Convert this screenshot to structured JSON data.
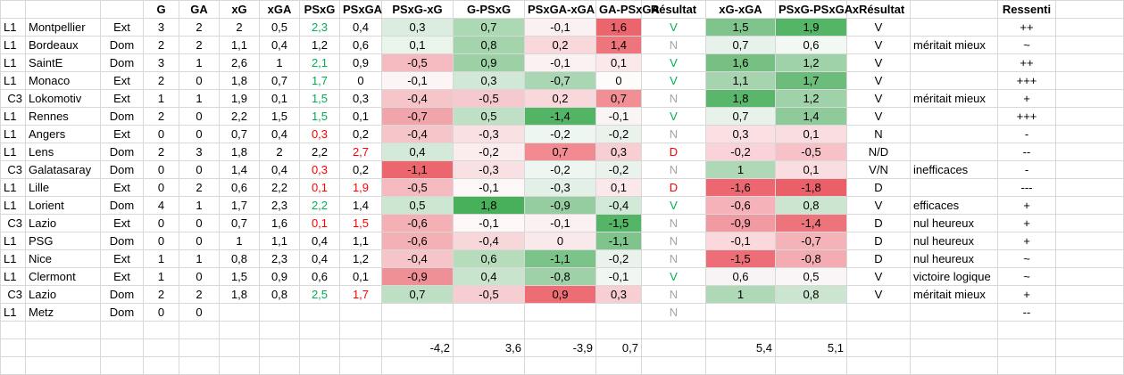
{
  "headers": {
    "league": "",
    "team": "",
    "venue": "",
    "g": "G",
    "ga": "GA",
    "xg": "xG",
    "xga": "xGA",
    "psxg": "PSxG",
    "psxga": "PSxGA",
    "psxg_xg": "PSxG-xG",
    "g_psxg": "G-PSxG",
    "psxga_xga": "PSxGA-xGA",
    "ga_psxga": "GA-PSxGA",
    "resultat": "Résultat",
    "xg_xga": "xG-xGA",
    "psxg_psxga": "PSxG-PSxGA",
    "xresultat": "xRésultat",
    "note": "",
    "ressenti": "Ressenti",
    "blank": ""
  },
  "colors": {
    "text": {
      "green": "#00b050",
      "red": "#ff0000",
      "grey": "#a6a6a6",
      "black": "#000000"
    },
    "gridline": "#d8d8d8"
  },
  "rows": [
    {
      "league": "L1",
      "team": "Montpellier",
      "venue": "Ext",
      "g": "3",
      "ga": "2",
      "xg": "2",
      "xga": "0,5",
      "psxg": {
        "t": "2,3",
        "fg": "green"
      },
      "psxga": {
        "t": "0,4"
      },
      "psxg_xg": {
        "t": "0,3",
        "bg": "#dbedde"
      },
      "g_psxg": {
        "t": "0,7",
        "bg": "#add8b4"
      },
      "psxga_xga": {
        "t": "-0,1",
        "bg": "#fbf1f2"
      },
      "ga_psxga": {
        "t": "1,6",
        "bg": "#ec656c"
      },
      "resultat": {
        "t": "V",
        "fg": "green"
      },
      "xg_xga": {
        "t": "1,5",
        "bg": "#7fc48c"
      },
      "psxg_psxga": {
        "t": "1,9",
        "bg": "#55b567"
      },
      "xresultat": "V",
      "note": "",
      "ressenti": "++"
    },
    {
      "league": "L1",
      "team": "Bordeaux",
      "venue": "Dom",
      "g": "2",
      "ga": "2",
      "xg": "1,1",
      "xga": "0,4",
      "psxg": {
        "t": "1,2"
      },
      "psxga": {
        "t": "0,6"
      },
      "psxg_xg": {
        "t": "0,1",
        "bg": "#e9f4eb"
      },
      "g_psxg": {
        "t": "0,8",
        "bg": "#a4d4ac"
      },
      "psxga_xga": {
        "t": "0,2",
        "bg": "#f8d8db"
      },
      "ga_psxga": {
        "t": "1,4",
        "bg": "#ee757c"
      },
      "resultat": {
        "t": "N",
        "fg": "grey"
      },
      "xg_xga": {
        "t": "0,7",
        "bg": "#e6f2ea"
      },
      "psxg_psxga": {
        "t": "0,6",
        "bg": "#f2f8f4"
      },
      "xresultat": "V",
      "note": "méritait mieux",
      "ressenti": "~"
    },
    {
      "league": "L1",
      "team": "SaintE",
      "venue": "Dom",
      "g": "3",
      "ga": "1",
      "xg": "2,6",
      "xga": "1",
      "psxg": {
        "t": "2,1",
        "fg": "green"
      },
      "psxga": {
        "t": "0,9"
      },
      "psxg_xg": {
        "t": "-0,5",
        "bg": "#f4babf"
      },
      "g_psxg": {
        "t": "0,9",
        "bg": "#9cd0a5"
      },
      "psxga_xga": {
        "t": "-0,1",
        "bg": "#fbf1f2"
      },
      "ga_psxga": {
        "t": "0,1",
        "bg": "#fbe8ea"
      },
      "resultat": {
        "t": "V",
        "fg": "green"
      },
      "xg_xga": {
        "t": "1,6",
        "bg": "#76c083"
      },
      "psxg_psxga": {
        "t": "1,2",
        "bg": "#a0d2a9"
      },
      "xresultat": "V",
      "note": "",
      "ressenti": "++"
    },
    {
      "league": "L1",
      "team": "Monaco",
      "venue": "Ext",
      "g": "2",
      "ga": "0",
      "xg": "1,8",
      "xga": "0,7",
      "psxg": {
        "t": "1,7",
        "fg": "green"
      },
      "psxga": {
        "t": "0"
      },
      "psxg_xg": {
        "t": "-0,1",
        "bg": "#fdf4f5"
      },
      "g_psxg": {
        "t": "0,3",
        "bg": "#d2e8d6"
      },
      "psxga_xga": {
        "t": "-0,7",
        "bg": "#abd6b3"
      },
      "ga_psxga": {
        "t": "0",
        "bg": "#fefbfb"
      },
      "resultat": {
        "t": "V",
        "fg": "green"
      },
      "xg_xga": {
        "t": "1,1",
        "bg": "#a5d4ae"
      },
      "psxg_psxga": {
        "t": "1,7",
        "bg": "#6cbd7b"
      },
      "xresultat": "V",
      "note": "",
      "ressenti": "+++"
    },
    {
      "league": "C3",
      "team": "Lokomotiv",
      "venue": "Ext",
      "g": "1",
      "ga": "1",
      "xg": "1,9",
      "xga": "0,1",
      "psxg": {
        "t": "1,5",
        "fg": "green"
      },
      "psxga": {
        "t": "0,3"
      },
      "psxg_xg": {
        "t": "-0,4",
        "bg": "#f6c5c9"
      },
      "g_psxg": {
        "t": "-0,5",
        "bg": "#f5c9cd"
      },
      "psxga_xga": {
        "t": "0,2",
        "bg": "#f8d8db"
      },
      "ga_psxga": {
        "t": "0,7",
        "bg": "#f28f95"
      },
      "resultat": {
        "t": "N",
        "fg": "grey"
      },
      "xg_xga": {
        "t": "1,8",
        "bg": "#5ab66b"
      },
      "psxg_psxga": {
        "t": "1,2",
        "bg": "#a0d2a9"
      },
      "xresultat": "V",
      "note": "méritait mieux",
      "ressenti": "+"
    },
    {
      "league": "L1",
      "team": "Rennes",
      "venue": "Dom",
      "g": "2",
      "ga": "0",
      "xg": "2,2",
      "xga": "1,5",
      "psxg": {
        "t": "1,5",
        "fg": "green"
      },
      "psxga": {
        "t": "0,1"
      },
      "psxg_xg": {
        "t": "-0,7",
        "bg": "#f1a5ab"
      },
      "g_psxg": {
        "t": "0,5",
        "bg": "#c0e0c5"
      },
      "psxga_xga": {
        "t": "-1,4",
        "bg": "#52b464"
      },
      "ga_psxga": {
        "t": "-0,1",
        "bg": "#faf5f5"
      },
      "resultat": {
        "t": "V",
        "fg": "green"
      },
      "xg_xga": {
        "t": "0,7",
        "bg": "#e6f2ea"
      },
      "psxg_psxga": {
        "t": "1,4",
        "bg": "#8fcb9a"
      },
      "xresultat": "V",
      "note": "",
      "ressenti": "+++"
    },
    {
      "league": "L1",
      "team": "Angers",
      "venue": "Ext",
      "g": "0",
      "ga": "0",
      "xg": "0,7",
      "xga": "0,4",
      "psxg": {
        "t": "0,3",
        "fg": "red"
      },
      "psxga": {
        "t": "0,2"
      },
      "psxg_xg": {
        "t": "-0,4",
        "bg": "#f6c5c9"
      },
      "g_psxg": {
        "t": "-0,3",
        "bg": "#f9e1e3"
      },
      "psxga_xga": {
        "t": "-0,2",
        "bg": "#eef6f1"
      },
      "ga_psxga": {
        "t": "-0,2",
        "bg": "#e9f3ec"
      },
      "resultat": {
        "t": "N",
        "fg": "grey"
      },
      "xg_xga": {
        "t": "0,3",
        "bg": "#fbe0e3"
      },
      "psxg_psxga": {
        "t": "0,1",
        "bg": "#f9dde0"
      },
      "xresultat": "N",
      "note": "",
      "ressenti": "-"
    },
    {
      "league": "L1",
      "team": "Lens",
      "venue": "Dom",
      "g": "2",
      "ga": "3",
      "xg": "1,8",
      "xga": "2",
      "psxg": {
        "t": "2,2"
      },
      "psxga": {
        "t": "2,7",
        "fg": "red"
      },
      "psxg_xg": {
        "t": "0,4",
        "bg": "#d4ead8"
      },
      "g_psxg": {
        "t": "-0,2",
        "bg": "#fbeced"
      },
      "psxga_xga": {
        "t": "0,7",
        "bg": "#f28b91"
      },
      "ga_psxga": {
        "t": "0,3",
        "bg": "#f7ced2"
      },
      "resultat": {
        "t": "D",
        "fg": "red"
      },
      "xg_xga": {
        "t": "-0,2",
        "bg": "#f9d3d7"
      },
      "psxg_psxga": {
        "t": "-0,5",
        "bg": "#f6c2c7"
      },
      "xresultat": "N/D",
      "note": "",
      "ressenti": "--"
    },
    {
      "league": "C3",
      "team": "Galatasaray",
      "venue": "Dom",
      "g": "0",
      "ga": "0",
      "xg": "1,4",
      "xga": "0,4",
      "psxg": {
        "t": "0,3",
        "fg": "red"
      },
      "psxga": {
        "t": "0,2"
      },
      "psxg_xg": {
        "t": "-1,1",
        "bg": "#ec666d"
      },
      "g_psxg": {
        "t": "-0,3",
        "bg": "#f9e1e3"
      },
      "psxga_xga": {
        "t": "-0,2",
        "bg": "#eef6f1"
      },
      "ga_psxga": {
        "t": "-0,2",
        "bg": "#e9f3ec"
      },
      "resultat": {
        "t": "N",
        "fg": "grey"
      },
      "xg_xga": {
        "t": "1",
        "bg": "#aed8b6"
      },
      "psxg_psxga": {
        "t": "0,1",
        "bg": "#f9dde0"
      },
      "xresultat": "V/N",
      "note": "inefficaces",
      "ressenti": "-"
    },
    {
      "league": "L1",
      "team": "Lille",
      "venue": "Ext",
      "g": "0",
      "ga": "2",
      "xg": "0,6",
      "xga": "2,2",
      "psxg": {
        "t": "0,1",
        "fg": "red"
      },
      "psxga": {
        "t": "1,9",
        "fg": "red"
      },
      "psxg_xg": {
        "t": "-0,5",
        "bg": "#f4babf"
      },
      "g_psxg": {
        "t": "-0,1",
        "bg": "#fdf7f7"
      },
      "psxga_xga": {
        "t": "-0,3",
        "bg": "#e3f0e7"
      },
      "ga_psxga": {
        "t": "0,1",
        "bg": "#fbe8ea"
      },
      "resultat": {
        "t": "D",
        "fg": "red"
      },
      "xg_xga": {
        "t": "-1,6",
        "bg": "#ec676f"
      },
      "psxg_psxga": {
        "t": "-1,8",
        "bg": "#eb5f68"
      },
      "xresultat": "D",
      "note": "",
      "ressenti": "---"
    },
    {
      "league": "L1",
      "team": "Lorient",
      "venue": "Dom",
      "g": "4",
      "ga": "1",
      "xg": "1,7",
      "xga": "2,3",
      "psxg": {
        "t": "2,2",
        "fg": "green"
      },
      "psxga": {
        "t": "1,4"
      },
      "psxg_xg": {
        "t": "0,5",
        "bg": "#cde6d1"
      },
      "g_psxg": {
        "t": "1,8",
        "bg": "#48b05b"
      },
      "psxga_xga": {
        "t": "-0,9",
        "bg": "#95cda0"
      },
      "ga_psxga": {
        "t": "-0,4",
        "bg": "#d3e9d8"
      },
      "resultat": {
        "t": "V",
        "fg": "green"
      },
      "xg_xga": {
        "t": "-0,6",
        "bg": "#f5b3b9"
      },
      "psxg_psxga": {
        "t": "0,8",
        "bg": "#cbe5d0"
      },
      "xresultat": "V",
      "note": "efficaces",
      "ressenti": "+"
    },
    {
      "league": "C3",
      "team": "Lazio",
      "venue": "Ext",
      "g": "0",
      "ga": "0",
      "xg": "0,7",
      "xga": "1,6",
      "psxg": {
        "t": "0,1",
        "fg": "red"
      },
      "psxga": {
        "t": "1,5",
        "fg": "red"
      },
      "psxg_xg": {
        "t": "-0,6",
        "bg": "#f3b0b5"
      },
      "g_psxg": {
        "t": "-0,1",
        "bg": "#fdf7f7"
      },
      "psxga_xga": {
        "t": "-0,1",
        "bg": "#fbf1f2"
      },
      "ga_psxga": {
        "t": "-1,5",
        "bg": "#55b566"
      },
      "resultat": {
        "t": "N",
        "fg": "grey"
      },
      "xg_xga": {
        "t": "-0,9",
        "bg": "#f29aa1"
      },
      "psxg_psxga": {
        "t": "-1,4",
        "bg": "#ee747b"
      },
      "xresultat": "D",
      "note": "nul heureux",
      "ressenti": "+"
    },
    {
      "league": "L1",
      "team": "PSG",
      "venue": "Dom",
      "g": "0",
      "ga": "0",
      "xg": "1",
      "xga": "1,1",
      "psxg": {
        "t": "0,4"
      },
      "psxga": {
        "t": "1,1"
      },
      "psxg_xg": {
        "t": "-0,6",
        "bg": "#f3b0b5"
      },
      "g_psxg": {
        "t": "-0,4",
        "bg": "#f8d7da"
      },
      "psxga_xga": {
        "t": "0",
        "bg": "#fae9eb"
      },
      "ga_psxga": {
        "t": "-1,1",
        "bg": "#7ec48c"
      },
      "resultat": {
        "t": "N",
        "fg": "grey"
      },
      "xg_xga": {
        "t": "-0,1",
        "bg": "#fad8dc"
      },
      "psxg_psxga": {
        "t": "-0,7",
        "bg": "#f4b3b8"
      },
      "xresultat": "D",
      "note": "nul heureux",
      "ressenti": "+"
    },
    {
      "league": "L1",
      "team": "Nice",
      "venue": "Ext",
      "g": "1",
      "ga": "1",
      "xg": "0,8",
      "xga": "2,3",
      "psxg": {
        "t": "0,4"
      },
      "psxga": {
        "t": "1,2"
      },
      "psxg_xg": {
        "t": "-0,4",
        "bg": "#f6c5c9"
      },
      "g_psxg": {
        "t": "0,6",
        "bg": "#b6dcbc"
      },
      "psxga_xga": {
        "t": "-1,1",
        "bg": "#7cc38a"
      },
      "ga_psxga": {
        "t": "-0,2",
        "bg": "#e9f3ec"
      },
      "resultat": {
        "t": "N",
        "fg": "grey"
      },
      "xg_xga": {
        "t": "-1,5",
        "bg": "#ed6e76"
      },
      "psxg_psxga": {
        "t": "-0,8",
        "bg": "#f3acb2"
      },
      "xresultat": "D",
      "note": "nul heureux",
      "ressenti": "~"
    },
    {
      "league": "L1",
      "team": "Clermont",
      "venue": "Ext",
      "g": "1",
      "ga": "0",
      "xg": "1,5",
      "xga": "0,9",
      "psxg": {
        "t": "0,6"
      },
      "psxga": {
        "t": "0,1"
      },
      "psxg_xg": {
        "t": "-0,9",
        "bg": "#ef9096"
      },
      "g_psxg": {
        "t": "0,4",
        "bg": "#c9e4cd"
      },
      "psxga_xga": {
        "t": "-0,8",
        "bg": "#9fd1a9"
      },
      "ga_psxga": {
        "t": "-0,1",
        "bg": "#f0f7f2"
      },
      "resultat": {
        "t": "V",
        "fg": "green"
      },
      "xg_xga": {
        "t": "0,6",
        "bg": "#f8f4f5"
      },
      "psxg_psxga": {
        "t": "0,5",
        "bg": "#faf6f7"
      },
      "xresultat": "V",
      "note": "victoire logique",
      "ressenti": "~"
    },
    {
      "league": "C3",
      "team": "Lazio",
      "venue": "Dom",
      "g": "2",
      "ga": "2",
      "xg": "1,8",
      "xga": "0,8",
      "psxg": {
        "t": "2,5",
        "fg": "green"
      },
      "psxga": {
        "t": "1,7",
        "fg": "red"
      },
      "psxg_xg": {
        "t": "0,7",
        "bg": "#bfdfc4"
      },
      "g_psxg": {
        "t": "-0,5",
        "bg": "#f6cdd1"
      },
      "psxga_xga": {
        "t": "0,9",
        "bg": "#ee6d74"
      },
      "ga_psxga": {
        "t": "0,3",
        "bg": "#f7ced2"
      },
      "resultat": {
        "t": "N",
        "fg": "grey"
      },
      "xg_xga": {
        "t": "1",
        "bg": "#aed8b6"
      },
      "psxg_psxga": {
        "t": "0,8",
        "bg": "#cbe5d0"
      },
      "xresultat": "V",
      "note": "méritait mieux",
      "ressenti": "+"
    },
    {
      "league": "L1",
      "team": "Metz",
      "venue": "Dom",
      "g": "0",
      "ga": "0",
      "xg": "",
      "xga": "",
      "psxg": {
        "t": ""
      },
      "psxga": {
        "t": ""
      },
      "psxg_xg": {
        "t": ""
      },
      "g_psxg": {
        "t": ""
      },
      "psxga_xga": {
        "t": ""
      },
      "ga_psxga": {
        "t": ""
      },
      "resultat": {
        "t": "N",
        "fg": "grey"
      },
      "xg_xga": {
        "t": ""
      },
      "psxg_psxga": {
        "t": ""
      },
      "xresultat": "",
      "note": "",
      "ressenti": "--"
    }
  ],
  "totals": {
    "psxg_xg": "-4,2",
    "g_psxg": "3,6",
    "psxga_xga": "-3,9",
    "ga_psxga": "0,7",
    "xg_xga": "5,4",
    "psxg_psxga": "5,1"
  }
}
